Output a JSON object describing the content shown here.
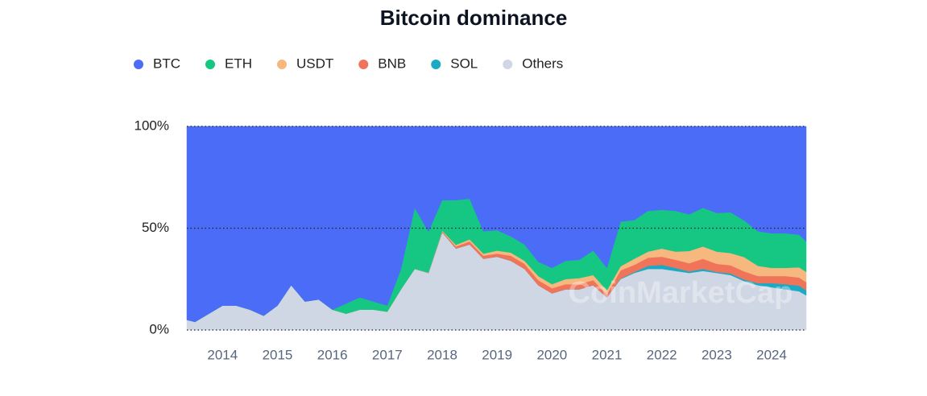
{
  "chart_data": {
    "type": "stacked-area",
    "title": "Bitcoin dominance",
    "watermark": "CoinMarketCap",
    "x": [
      2013.35,
      2013.5,
      2013.75,
      2014.0,
      2014.25,
      2014.5,
      2014.75,
      2015.0,
      2015.25,
      2015.5,
      2015.75,
      2016.0,
      2016.25,
      2016.5,
      2016.75,
      2017.0,
      2017.25,
      2017.5,
      2017.75,
      2018.0,
      2018.25,
      2018.5,
      2018.75,
      2019.0,
      2019.25,
      2019.5,
      2019.75,
      2020.0,
      2020.25,
      2020.5,
      2020.75,
      2021.0,
      2021.25,
      2021.5,
      2021.75,
      2022.0,
      2022.25,
      2022.5,
      2022.75,
      2023.0,
      2023.25,
      2023.5,
      2023.75,
      2024.0,
      2024.25,
      2024.5,
      2024.63
    ],
    "series": [
      {
        "name": "BTC",
        "color": "#4a6cf7",
        "values": [
          95,
          96,
          92,
          88,
          88,
          90,
          93,
          88,
          78,
          86,
          85,
          90,
          87,
          84,
          86,
          88,
          70,
          40,
          51.7,
          36.2,
          36.2,
          35.5,
          51.5,
          51,
          54,
          58,
          66.5,
          69.5,
          66,
          65.5,
          61,
          69.5,
          46.7,
          46,
          41.5,
          41,
          41.5,
          43.2,
          40,
          42.5,
          42.2,
          46.2,
          51.5,
          52.5,
          52.5,
          53.2,
          56.5
        ]
      },
      {
        "name": "ETH",
        "color": "#16c784",
        "values": [
          0,
          0,
          0,
          0,
          0,
          0,
          0,
          0,
          0,
          0,
          0,
          0,
          5,
          6,
          4,
          3,
          10,
          30,
          20,
          15,
          22,
          20,
          11,
          10,
          8,
          8,
          7,
          8,
          9,
          9,
          12,
          11,
          22,
          19,
          20,
          19,
          20,
          18,
          19,
          19,
          20,
          18,
          17,
          17,
          17,
          16,
          15
        ]
      },
      {
        "name": "USDT",
        "color": "#f6b87e",
        "values": [
          0,
          0,
          0,
          0,
          0,
          0,
          0,
          0,
          0,
          0,
          0,
          0,
          0,
          0,
          0,
          0,
          0,
          0,
          0.1,
          0.3,
          0.8,
          1,
          1,
          1.5,
          1.5,
          1.5,
          2,
          2,
          2.5,
          3,
          2.5,
          2,
          2,
          3,
          3,
          4,
          4,
          6,
          6,
          6,
          6,
          7,
          5,
          4,
          4,
          5,
          5
        ]
      },
      {
        "name": "BNB",
        "color": "#f0745a",
        "values": [
          0,
          0,
          0,
          0,
          0,
          0,
          0,
          0,
          0,
          0,
          0,
          0,
          0,
          0,
          0,
          0,
          0,
          0,
          0.2,
          0.5,
          1,
          1.5,
          1.5,
          1.5,
          2.5,
          2.5,
          2.5,
          2.5,
          2.5,
          2.5,
          2.5,
          1.5,
          4,
          3.5,
          4,
          4,
          4,
          4,
          5,
          4,
          4,
          4,
          3.5,
          3.5,
          4,
          4,
          4
        ]
      },
      {
        "name": "SOL",
        "color": "#1ba9c4",
        "values": [
          0,
          0,
          0,
          0,
          0,
          0,
          0,
          0,
          0,
          0,
          0,
          0,
          0,
          0,
          0,
          0,
          0,
          0,
          0,
          0,
          0,
          0,
          0,
          0,
          0,
          0,
          0,
          0,
          0,
          0,
          0,
          0,
          0.3,
          0.5,
          1.5,
          2,
          1.5,
          0.8,
          1,
          0.5,
          0.8,
          0.8,
          1,
          2,
          2.5,
          2.8,
          2.5
        ]
      },
      {
        "name": "Others",
        "color": "#cfd6e4",
        "values": [
          5,
          4,
          8,
          12,
          12,
          10,
          7,
          12,
          22,
          14,
          15,
          10,
          8,
          10,
          10,
          9,
          20,
          30,
          28,
          48,
          40,
          42,
          35,
          36,
          34,
          30,
          22,
          18,
          20,
          20,
          22,
          16,
          25,
          28,
          30,
          30,
          29,
          28,
          29,
          28,
          27,
          24,
          22,
          21,
          20,
          19,
          17
        ]
      }
    ],
    "xlim": [
      2013.35,
      2024.63
    ],
    "xticks": [
      2014,
      2015,
      2016,
      2017,
      2018,
      2019,
      2020,
      2021,
      2022,
      2023,
      2024
    ],
    "ylim": [
      0,
      100
    ],
    "yticks": [
      {
        "value": 0,
        "label": "0%"
      },
      {
        "value": 50,
        "label": "50%"
      },
      {
        "value": 100,
        "label": "100%"
      }
    ],
    "grid": true,
    "legend": "top-left"
  }
}
